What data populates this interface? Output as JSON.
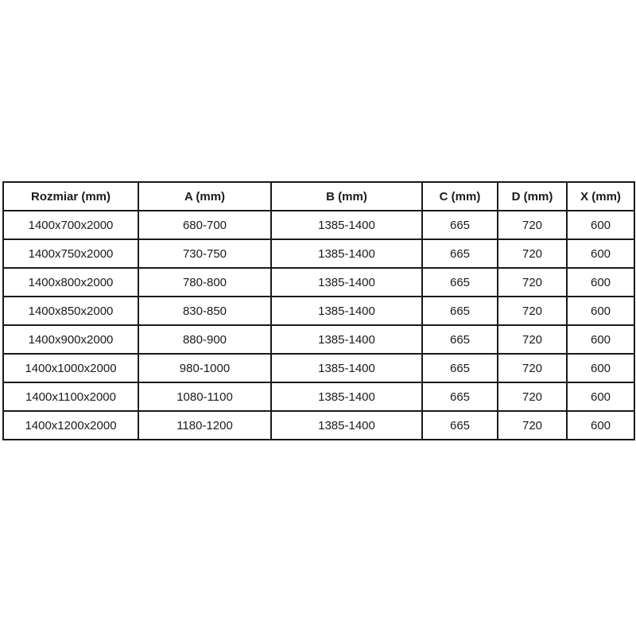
{
  "colors": {
    "background": "#ffffff",
    "border": "#1a1a1a",
    "text": "#1a1a1a"
  },
  "chart_data": {
    "type": "table",
    "columns": [
      "Rozmiar (mm)",
      "A (mm)",
      "B (mm)",
      "C (mm)",
      "D (mm)",
      "X (mm)"
    ],
    "rows": [
      [
        "1400x700x2000",
        "680-700",
        "1385-1400",
        "665",
        "720",
        "600"
      ],
      [
        "1400x750x2000",
        "730-750",
        "1385-1400",
        "665",
        "720",
        "600"
      ],
      [
        "1400x800x2000",
        "780-800",
        "1385-1400",
        "665",
        "720",
        "600"
      ],
      [
        "1400x850x2000",
        "830-850",
        "1385-1400",
        "665",
        "720",
        "600"
      ],
      [
        "1400x900x2000",
        "880-900",
        "1385-1400",
        "665",
        "720",
        "600"
      ],
      [
        "1400x1000x2000",
        "980-1000",
        "1385-1400",
        "665",
        "720",
        "600"
      ],
      [
        "1400x1100x2000",
        "1080-1100",
        "1385-1400",
        "665",
        "720",
        "600"
      ],
      [
        "1400x1200x2000",
        "1180-1200",
        "1385-1400",
        "665",
        "720",
        "600"
      ]
    ]
  }
}
